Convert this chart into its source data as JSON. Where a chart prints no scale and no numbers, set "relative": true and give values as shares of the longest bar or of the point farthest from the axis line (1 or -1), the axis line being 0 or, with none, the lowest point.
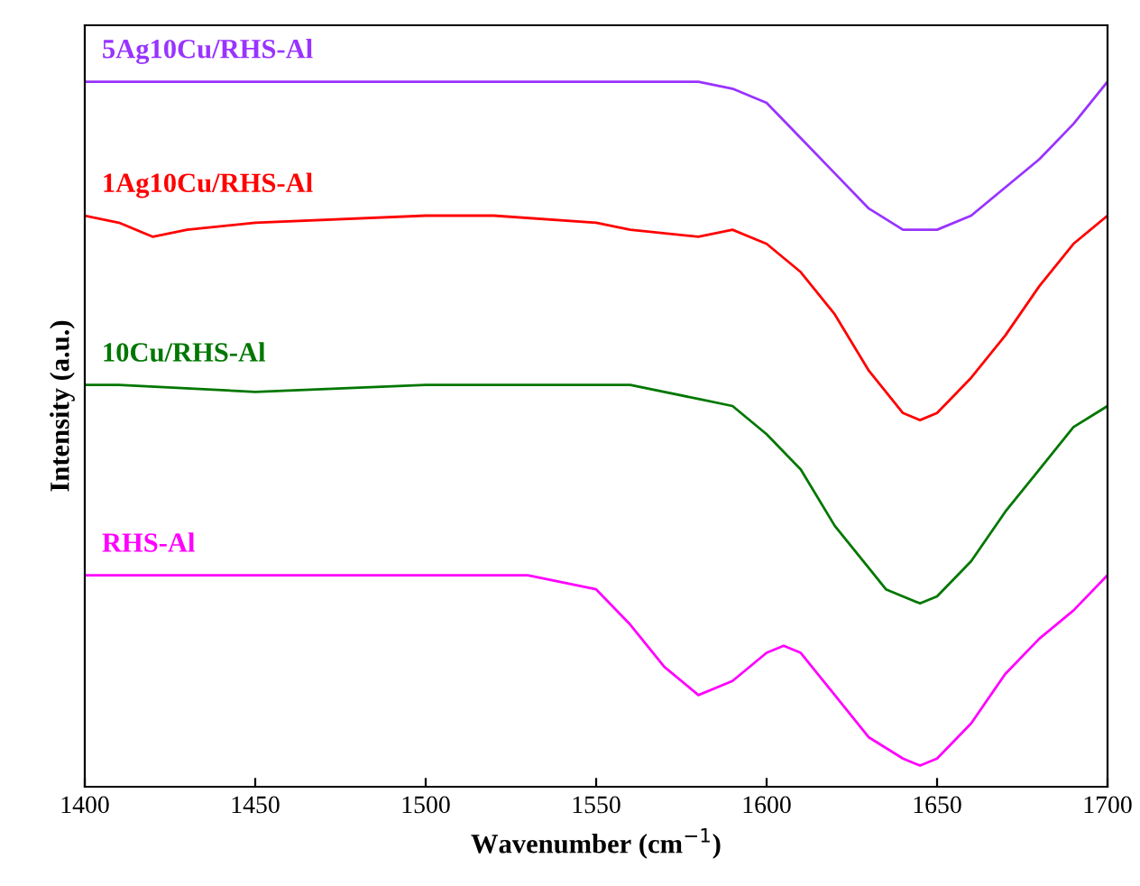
{
  "chart_data": {
    "type": "line",
    "xlabel": "Wavenumber (cm$^{−1}$)",
    "ylabel": "Intensity (a.u.)",
    "relative": true,
    "tick_labels": "x",
    "xlim": [
      1400,
      1700
    ],
    "xticks": [
      1400,
      1450,
      1500,
      1550,
      1600,
      1650,
      1700
    ],
    "grid": false,
    "legend": false,
    "marker": "none",
    "line_style": "solid",
    "series": [
      {
        "name": "5Ag10Cu/RHS-Al",
        "color": "#9933ff",
        "x": [
          1400,
          1450,
          1500,
          1550,
          1580,
          1590,
          1600,
          1610,
          1620,
          1630,
          1640,
          1650,
          1660,
          1670,
          1680,
          1690,
          1700
        ],
        "values": [
          1.0,
          1.0,
          1.0,
          1.0,
          1.0,
          0.99,
          0.97,
          0.92,
          0.87,
          0.82,
          0.79,
          0.79,
          0.81,
          0.85,
          0.89,
          0.94,
          1.0
        ]
      },
      {
        "name": "1Ag10Cu/RHS-Al",
        "color": "#ff0000",
        "x": [
          1400,
          1410,
          1420,
          1430,
          1450,
          1500,
          1520,
          1550,
          1560,
          1580,
          1590,
          1600,
          1610,
          1620,
          1630,
          1640,
          1645,
          1650,
          1660,
          1670,
          1680,
          1690,
          1700
        ],
        "values": [
          0.81,
          0.8,
          0.78,
          0.79,
          0.8,
          0.81,
          0.81,
          0.8,
          0.79,
          0.78,
          0.79,
          0.77,
          0.73,
          0.67,
          0.59,
          0.53,
          0.52,
          0.53,
          0.58,
          0.64,
          0.71,
          0.77,
          0.81
        ]
      },
      {
        "name": "10Cu/RHS-Al",
        "color": "#007700",
        "x": [
          1400,
          1410,
          1450,
          1500,
          1530,
          1560,
          1580,
          1590,
          1600,
          1610,
          1620,
          1630,
          1635,
          1645,
          1650,
          1660,
          1670,
          1680,
          1690,
          1700
        ],
        "values": [
          0.57,
          0.57,
          0.56,
          0.57,
          0.57,
          0.57,
          0.55,
          0.54,
          0.5,
          0.45,
          0.37,
          0.31,
          0.28,
          0.26,
          0.27,
          0.32,
          0.39,
          0.45,
          0.51,
          0.54
        ]
      },
      {
        "name": "RHS-Al",
        "color": "#ff00ff",
        "x": [
          1400,
          1450,
          1500,
          1530,
          1550,
          1560,
          1570,
          1580,
          1590,
          1600,
          1605,
          1610,
          1620,
          1630,
          1640,
          1645,
          1650,
          1660,
          1670,
          1680,
          1690,
          1700
        ],
        "values": [
          0.3,
          0.3,
          0.3,
          0.3,
          0.28,
          0.23,
          0.17,
          0.13,
          0.15,
          0.19,
          0.2,
          0.19,
          0.13,
          0.07,
          0.04,
          0.03,
          0.04,
          0.09,
          0.16,
          0.21,
          0.25,
          0.3
        ]
      }
    ]
  }
}
